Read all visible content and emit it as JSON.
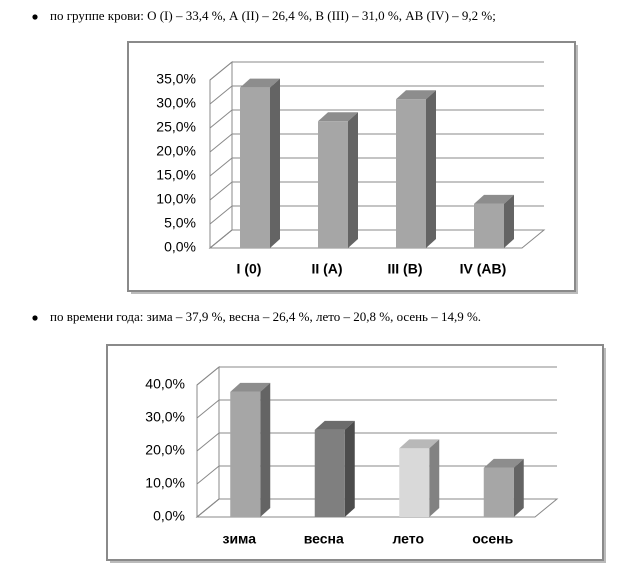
{
  "bullets": [
    "по группе крови: О (I) – 33,4 %, А (II) – 26,4 %, В (III) – 31,0 %, АВ (IV) – 9,2 %;",
    "по времени года: зима – 37,9 %, весна – 26,4 %, лето – 20,8 %, осень – 14,9 %."
  ],
  "chart_data": [
    {
      "type": "bar",
      "categories": [
        "I (0)",
        "II (A)",
        "III (B)",
        "IV (AB)"
      ],
      "values": [
        33.4,
        26.4,
        31.0,
        9.2
      ],
      "colors": [
        "#a6a6a6",
        "#a6a6a6",
        "#a6a6a6",
        "#a6a6a6"
      ],
      "ylim": [
        0,
        35
      ],
      "yticks": [
        {
          "value": 0,
          "label": "0,0%"
        },
        {
          "value": 5,
          "label": "5,0%"
        },
        {
          "value": 10,
          "label": "10,0%"
        },
        {
          "value": 15,
          "label": "15,0%"
        },
        {
          "value": 20,
          "label": "20,0%"
        },
        {
          "value": 25,
          "label": "25,0%"
        },
        {
          "value": 30,
          "label": "30,0%"
        },
        {
          "value": 35,
          "label": "35,0%"
        }
      ],
      "grid": true
    },
    {
      "type": "bar",
      "categories": [
        "зима",
        "весна",
        "лето",
        "осень"
      ],
      "values": [
        37.9,
        26.4,
        20.8,
        14.9
      ],
      "colors": [
        "#a6a6a6",
        "#7f7f7f",
        "#d9d9d9",
        "#a6a6a6"
      ],
      "ylim": [
        0,
        40
      ],
      "yticks": [
        {
          "value": 0,
          "label": "0,0%"
        },
        {
          "value": 10,
          "label": "10,0%"
        },
        {
          "value": 20,
          "label": "20,0%"
        },
        {
          "value": 30,
          "label": "30,0%"
        },
        {
          "value": 40,
          "label": "40,0%"
        }
      ],
      "grid": true
    }
  ]
}
